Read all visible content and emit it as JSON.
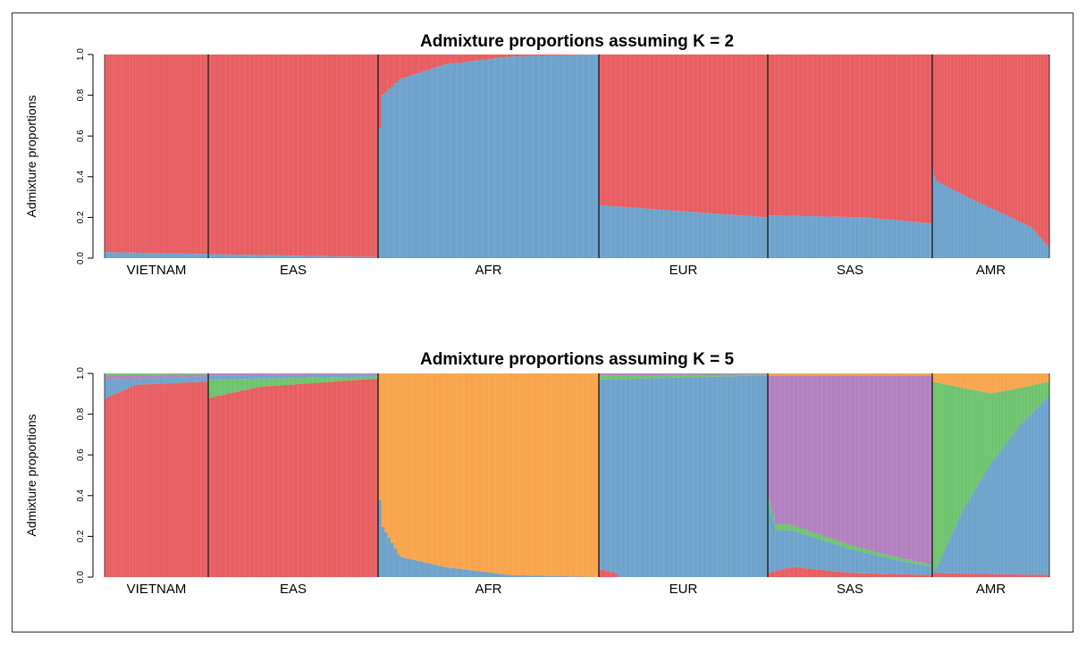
{
  "chart_data": [
    {
      "type": "bar",
      "stacked": true,
      "title": "Admixture proportions assuming K = 2",
      "ylabel": "Admixture proportions",
      "ylim": [
        0,
        1
      ],
      "yticks": [
        "0.0",
        "0.2",
        "0.4",
        "0.6",
        "0.8",
        "1.0"
      ],
      "groups": [
        {
          "name": "VIETNAM",
          "profile": [
            [
              0,
              0.03
            ],
            [
              1,
              0.02
            ]
          ]
        },
        {
          "name": "EAS",
          "profile": [
            [
              0,
              0.02
            ],
            [
              1,
              0.005
            ]
          ]
        },
        {
          "name": "AFR",
          "profile": [
            [
              0,
              0.55
            ],
            [
              0.02,
              0.8
            ],
            [
              0.1,
              0.88
            ],
            [
              0.3,
              0.95
            ],
            [
              0.6,
              0.99
            ],
            [
              1,
              1.0
            ]
          ]
        },
        {
          "name": "EUR",
          "profile": [
            [
              0,
              0.26
            ],
            [
              1,
              0.2
            ]
          ]
        },
        {
          "name": "SAS",
          "profile": [
            [
              0,
              0.21
            ],
            [
              0.6,
              0.2
            ],
            [
              1,
              0.17
            ]
          ]
        },
        {
          "name": "AMR",
          "profile": [
            [
              0,
              0.45
            ],
            [
              0.03,
              0.38
            ],
            [
              0.3,
              0.3
            ],
            [
              0.6,
              0.22
            ],
            [
              0.85,
              0.15
            ],
            [
              1,
              0.05
            ]
          ]
        }
      ],
      "series": [
        {
          "name": "",
          "color": "#6fa3cc",
          "role": "bottom"
        },
        {
          "name": "",
          "color": "#e85f62",
          "role": "top"
        }
      ]
    },
    {
      "type": "bar",
      "stacked": true,
      "title": "Admixture proportions assuming K = 5",
      "ylabel": "Admixture proportions",
      "ylim": [
        0,
        1
      ],
      "yticks": [
        "0.0",
        "0.2",
        "0.4",
        "0.6",
        "0.8",
        "1.0"
      ],
      "colors": {
        "red": "#e85f62",
        "blue": "#6fa3cc",
        "orange": "#f8a54d",
        "green": "#6fc46f",
        "purple": "#b381c0"
      },
      "groups": [
        {
          "name": "VIETNAM",
          "layers": [
            {
              "color": "red",
              "profile": [
                [
                  0,
                  0.84
                ],
                [
                  0.03,
                  0.93
                ],
                [
                  1,
                  0.96
                ]
              ]
            },
            {
              "color": "blue",
              "profile": [
                [
                  0,
                  0.1
                ],
                [
                  0.3,
                  0.03
                ],
                [
                  1,
                  0.025
                ]
              ]
            },
            {
              "color": "purple",
              "profile": [
                [
                  0,
                  0.02
                ],
                [
                  1,
                  0.01
                ]
              ]
            },
            {
              "color": "green",
              "profile": [
                [
                  0,
                  0.01
                ],
                [
                  1,
                  0.005
                ]
              ]
            }
          ]
        },
        {
          "name": "EAS",
          "layers": [
            {
              "color": "red",
              "profile": [
                [
                  0,
                  0.87
                ],
                [
                  0.3,
                  0.93
                ],
                [
                  1,
                  0.975
                ]
              ]
            },
            {
              "color": "green",
              "profile": [
                [
                  0,
                  0.09
                ],
                [
                  0.3,
                  0.04
                ],
                [
                  1,
                  0.01
                ]
              ]
            },
            {
              "color": "blue",
              "profile": [
                [
                  0,
                  0.02
                ],
                [
                  1,
                  0.01
                ]
              ]
            },
            {
              "color": "purple",
              "profile": [
                [
                  0,
                  0.01
                ],
                [
                  1,
                  0.005
                ]
              ]
            }
          ]
        },
        {
          "name": "AFR",
          "layers": [
            {
              "color": "red",
              "profile": [
                [
                  0,
                  0.0
                ],
                [
                  1,
                  0.0
                ]
              ]
            },
            {
              "color": "blue",
              "profile": [
                [
                  0,
                  0.45
                ],
                [
                  0.02,
                  0.25
                ],
                [
                  0.1,
                  0.1
                ],
                [
                  0.3,
                  0.05
                ],
                [
                  0.6,
                  0.01
                ],
                [
                  1,
                  0.0
                ]
              ]
            },
            {
              "color": "orange",
              "profile": [
                [
                  0,
                  0.55
                ],
                [
                  0.02,
                  0.75
                ],
                [
                  0.1,
                  0.9
                ],
                [
                  0.3,
                  0.95
                ],
                [
                  0.6,
                  0.99
                ],
                [
                  1,
                  1.0
                ]
              ]
            }
          ]
        },
        {
          "name": "EUR",
          "layers": [
            {
              "color": "red",
              "profile": [
                [
                  0,
                  0.04
                ],
                [
                  0.1,
                  0.02
                ],
                [
                  0.12,
                  0.0
                ],
                [
                  1,
                  0.0
                ]
              ]
            },
            {
              "color": "blue",
              "profile": [
                [
                  0,
                  0.93
                ],
                [
                  0.5,
                  0.98
                ],
                [
                  1,
                  0.99
                ]
              ]
            },
            {
              "color": "green",
              "profile": [
                [
                  0,
                  0.02
                ],
                [
                  1,
                  0.005
                ]
              ]
            },
            {
              "color": "purple",
              "profile": [
                [
                  0,
                  0.01
                ],
                [
                  1,
                  0.005
                ]
              ]
            }
          ]
        },
        {
          "name": "SAS",
          "layers": [
            {
              "color": "red",
              "profile": [
                [
                  0,
                  0.02
                ],
                [
                  0.15,
                  0.05
                ],
                [
                  0.5,
                  0.02
                ],
                [
                  1,
                  0.01
                ]
              ]
            },
            {
              "color": "blue",
              "profile": [
                [
                  0,
                  0.35
                ],
                [
                  0.05,
                  0.2
                ],
                [
                  0.3,
                  0.15
                ],
                [
                  0.7,
                  0.08
                ],
                [
                  1,
                  0.04
                ]
              ]
            },
            {
              "color": "green",
              "profile": [
                [
                  0,
                  0.03
                ],
                [
                  1,
                  0.01
                ]
              ]
            },
            {
              "color": "purple",
              "profile": [
                [
                  0,
                  0.59
                ],
                [
                  0.05,
                  0.72
                ],
                [
                  0.3,
                  0.77
                ],
                [
                  0.7,
                  0.86
                ],
                [
                  1,
                  0.93
                ]
              ]
            },
            {
              "color": "orange",
              "profile": [
                [
                  0,
                  0.01
                ],
                [
                  1,
                  0.01
                ]
              ]
            }
          ]
        },
        {
          "name": "AMR",
          "layers": [
            {
              "color": "red",
              "profile": [
                [
                  0,
                  0.02
                ],
                [
                  1,
                  0.01
                ]
              ]
            },
            {
              "color": "blue",
              "profile": [
                [
                  0,
                  0.0
                ],
                [
                  0.06,
                  0.05
                ],
                [
                  0.25,
                  0.3
                ],
                [
                  0.5,
                  0.55
                ],
                [
                  0.75,
                  0.72
                ],
                [
                  1,
                  0.88
                ]
              ]
            },
            {
              "color": "green",
              "profile": [
                [
                  0,
                  0.94
                ],
                [
                  0.06,
                  0.88
                ],
                [
                  0.25,
                  0.62
                ],
                [
                  0.5,
                  0.35
                ],
                [
                  0.75,
                  0.18
                ],
                [
                  1,
                  0.07
                ]
              ]
            },
            {
              "color": "orange",
              "profile": [
                [
                  0,
                  0.04
                ],
                [
                  0.5,
                  0.1
                ],
                [
                  1,
                  0.04
                ]
              ]
            }
          ]
        }
      ]
    }
  ]
}
